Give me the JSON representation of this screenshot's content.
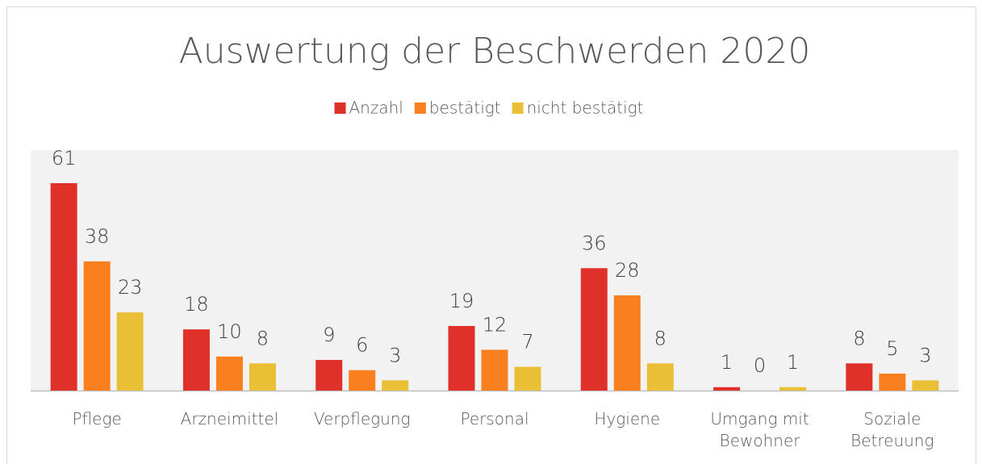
{
  "chart_data": {
    "type": "bar",
    "title": "Auswertung der Beschwerden 2020",
    "categories": [
      "Pflege",
      "Arzneimittel",
      "Verpflegung",
      "Personal",
      "Hygiene",
      "Umgang mit Bewohner",
      "Soziale Betreuung"
    ],
    "series": [
      {
        "name": "Anzahl",
        "color": "#e0302a",
        "values": [
          61,
          18,
          9,
          19,
          36,
          1,
          8
        ]
      },
      {
        "name": "bestätigt",
        "color": "#fa7f1e",
        "values": [
          38,
          10,
          6,
          12,
          28,
          0,
          5
        ]
      },
      {
        "name": "nicht bestätigt",
        "color": "#e9bf36",
        "values": [
          23,
          8,
          3,
          7,
          8,
          1,
          3
        ]
      }
    ],
    "legend": "top"
  }
}
